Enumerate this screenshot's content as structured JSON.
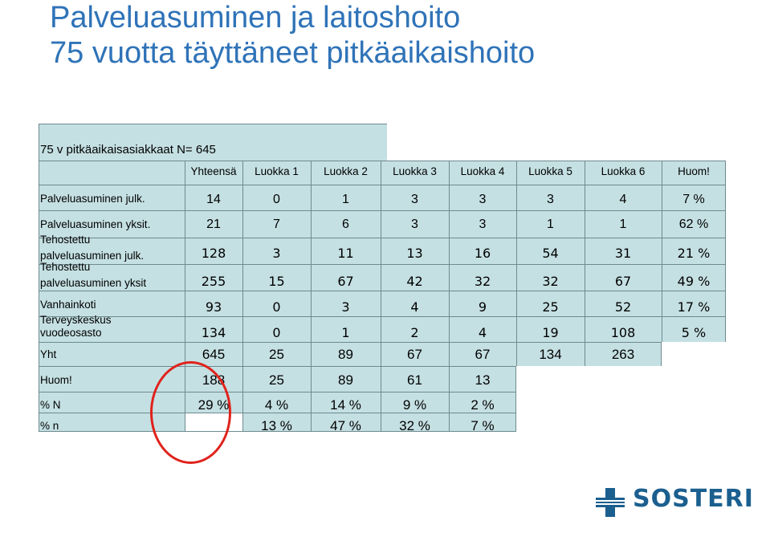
{
  "title": {
    "line1": "Palveluasuminen ja laitoshoito",
    "line2": "75 vuotta täyttäneet pitkäaikaishoito"
  },
  "table": {
    "caption": "75 v pitkäaikaisasiakkaat N= 645",
    "headers": [
      "Yhteensä",
      "Luokka 1",
      "Luokka 2",
      "Luokka 3",
      "Luokka 4",
      "Luokka 5",
      "Luokka 6",
      "Huom!"
    ],
    "rows": [
      {
        "label": [
          "Palveluasuminen julk."
        ],
        "values": [
          "14",
          "0",
          "1",
          "3",
          "3",
          "3",
          "4",
          "7 %"
        ]
      },
      {
        "label": [
          "Palveluasuminen yksit."
        ],
        "values": [
          "21",
          "7",
          "6",
          "3",
          "3",
          "1",
          "1",
          "62 %"
        ]
      },
      {
        "label": [
          "Tehostettu",
          "palveluasuminen julk."
        ],
        "values": [
          "128",
          "3",
          "11",
          "13",
          "16",
          "54",
          "31",
          "21 %"
        ]
      },
      {
        "label": [
          "Tehostettu",
          "palveluasuminen yksit"
        ],
        "values": [
          "255",
          "15",
          "67",
          "42",
          "32",
          "32",
          "67",
          "49 %"
        ]
      },
      {
        "label": [
          "Vanhainkoti"
        ],
        "values": [
          "93",
          "0",
          "3",
          "4",
          "9",
          "25",
          "52",
          "17 %"
        ]
      },
      {
        "label": [
          "Terveyskeskus",
          "vuodeosasto"
        ],
        "values": [
          "134",
          "0",
          "1",
          "2",
          "4",
          "19",
          "108",
          "5 %"
        ]
      },
      {
        "label": [
          "Yht"
        ],
        "values": [
          "645",
          "25",
          "89",
          "67",
          "67",
          "134",
          "263"
        ]
      },
      {
        "label": [
          "Huom!"
        ],
        "values": [
          "188",
          "25",
          "89",
          "61",
          "13"
        ]
      },
      {
        "label": [
          "% N"
        ],
        "values": [
          "29 %",
          "4 %",
          "14 %",
          "9 %",
          "2 %"
        ]
      },
      {
        "label": [
          "% n"
        ],
        "values": [
          "",
          "13 %",
          "47 %",
          "32 %",
          "7 %"
        ]
      }
    ]
  },
  "logo": {
    "text": "SOSTERI",
    "icon": "cross-icon",
    "color": "#1b5f8f"
  },
  "colors": {
    "title": "#2f73b8",
    "cell": "#c5e0e3",
    "highlight_circle": "#e0221c"
  }
}
